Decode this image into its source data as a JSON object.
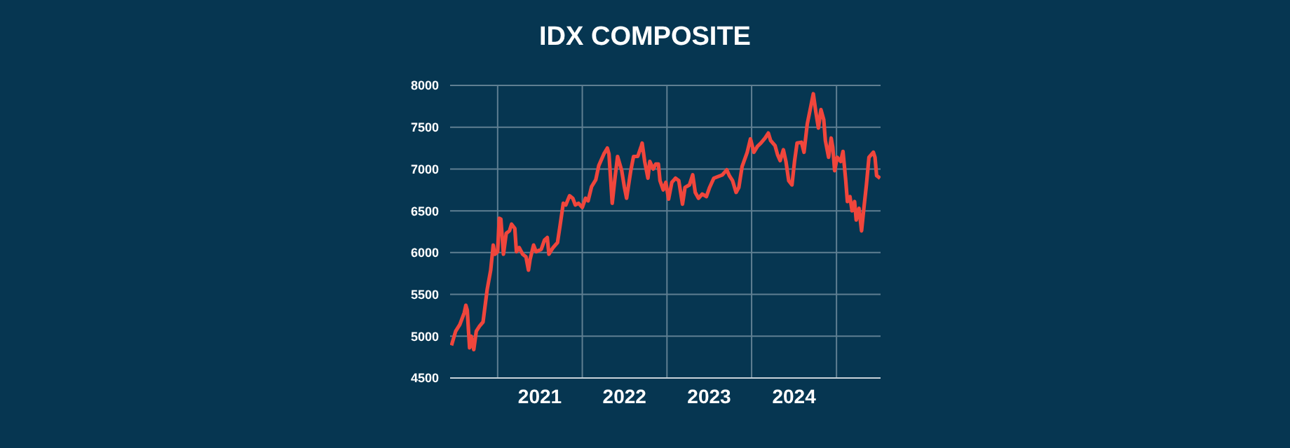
{
  "chart_data": {
    "type": "line",
    "title": "IDX COMPOSITE",
    "x": [
      "2020-06-16",
      "2020-07-04",
      "2020-07-22",
      "2020-08-10",
      "2020-08-17",
      "2020-08-23",
      "2020-09-02",
      "2020-09-09",
      "2020-09-20",
      "2020-10-01",
      "2020-10-15",
      "2020-10-30",
      "2020-11-17",
      "2020-12-02",
      "2020-12-13",
      "2020-12-20",
      "2021-01-01",
      "2021-01-08",
      "2021-01-15",
      "2021-01-26",
      "2021-02-07",
      "2021-02-21",
      "2021-03-02",
      "2021-03-16",
      "2021-03-23",
      "2021-04-04",
      "2021-04-19",
      "2021-05-03",
      "2021-05-14",
      "2021-05-21",
      "2021-06-05",
      "2021-06-16",
      "2021-07-08",
      "2021-07-22",
      "2021-08-03",
      "2021-08-10",
      "2021-08-28",
      "2021-09-16",
      "2021-09-27",
      "2021-10-11",
      "2021-10-22",
      "2021-11-07",
      "2021-11-21",
      "2021-12-02",
      "2021-12-16",
      "2022-01-01",
      "2022-01-15",
      "2022-01-26",
      "2022-02-10",
      "2022-02-28",
      "2022-03-13",
      "2022-04-04",
      "2022-04-19",
      "2022-04-26",
      "2022-05-10",
      "2022-05-21",
      "2022-06-02",
      "2022-06-20",
      "2022-07-01",
      "2022-07-11",
      "2022-07-29",
      "2022-08-10",
      "2022-08-28",
      "2022-09-13",
      "2022-09-16",
      "2022-09-27",
      "2022-10-11",
      "2022-10-19",
      "2022-11-03",
      "2022-11-14",
      "2022-11-25",
      "2022-12-02",
      "2022-12-16",
      "2022-12-27",
      "2023-01-08",
      "2023-01-22",
      "2023-02-07",
      "2023-02-21",
      "2023-03-09",
      "2023-03-20",
      "2023-04-08",
      "2023-04-22",
      "2023-05-03",
      "2023-05-17",
      "2023-06-02",
      "2023-06-20",
      "2023-07-04",
      "2023-07-22",
      "2023-08-10",
      "2023-08-28",
      "2023-09-16",
      "2023-09-27",
      "2023-10-11",
      "2023-10-26",
      "2023-11-07",
      "2023-11-21",
      "2023-12-13",
      "2023-12-27",
      "2024-01-11",
      "2024-01-26",
      "2024-02-10",
      "2024-02-28",
      "2024-03-13",
      "2024-03-23",
      "2024-04-11",
      "2024-04-22",
      "2024-05-03",
      "2024-05-17",
      "2024-05-28",
      "2024-06-09",
      "2024-06-23",
      "2024-07-04",
      "2024-07-15",
      "2024-08-03",
      "2024-08-14",
      "2024-08-28",
      "2024-09-13",
      "2024-09-23",
      "2024-10-04",
      "2024-10-15",
      "2024-10-26",
      "2024-11-07",
      "2024-11-14",
      "2024-11-28",
      "2024-12-09",
      "2024-12-16",
      "2024-12-24",
      "2025-01-04",
      "2025-01-19",
      "2025-01-29",
      "2025-02-10",
      "2025-02-17",
      "2025-02-28",
      "2025-03-09",
      "2025-03-20",
      "2025-03-27",
      "2025-04-08",
      "2025-04-19",
      "2025-04-29",
      "2025-05-10",
      "2025-05-21",
      "2025-06-09",
      "2025-06-16",
      "2025-06-23",
      "2025-07-08"
    ],
    "series": [
      {
        "color": "#f0463c",
        "values": [
          4890,
          5060,
          5140,
          5280,
          5370,
          5310,
          4860,
          5000,
          4840,
          5060,
          5120,
          5170,
          5560,
          5790,
          6090,
          5980,
          6010,
          6410,
          6400,
          5980,
          6230,
          6260,
          6340,
          6290,
          6010,
          6060,
          5980,
          5950,
          5790,
          5920,
          6090,
          6010,
          6040,
          6150,
          6180,
          5980,
          6060,
          6120,
          6320,
          6590,
          6570,
          6680,
          6650,
          6570,
          6590,
          6540,
          6650,
          6620,
          6790,
          6870,
          7040,
          7180,
          7250,
          7180,
          6590,
          6870,
          7150,
          6980,
          6790,
          6650,
          6980,
          7150,
          7150,
          7280,
          7310,
          7090,
          6890,
          7090,
          7000,
          7060,
          7060,
          6860,
          6750,
          6840,
          6640,
          6840,
          6890,
          6860,
          6580,
          6780,
          6810,
          6930,
          6720,
          6650,
          6700,
          6670,
          6780,
          6890,
          6910,
          6930,
          6990,
          6920,
          6860,
          6720,
          6780,
          7030,
          7200,
          7360,
          7200,
          7270,
          7310,
          7370,
          7430,
          7340,
          7280,
          7170,
          7100,
          7230,
          7090,
          6860,
          6810,
          7090,
          7310,
          7320,
          7200,
          7540,
          7760,
          7900,
          7680,
          7490,
          7710,
          7590,
          7340,
          7140,
          7370,
          7260,
          6980,
          7140,
          7090,
          7210,
          6860,
          6610,
          6670,
          6500,
          6610,
          6390,
          6530,
          6260,
          6530,
          6810,
          7140,
          7200,
          7140,
          6920,
          6890
        ]
      }
    ],
    "xlim": [
      "2020-06-10",
      "2025-07-10"
    ],
    "xticks": [
      {
        "value": "2021-01-01",
        "label": null
      },
      {
        "value": "2021-07-02",
        "label": "2021"
      },
      {
        "value": "2022-01-01",
        "label": null
      },
      {
        "value": "2022-07-02",
        "label": "2022"
      },
      {
        "value": "2023-01-01",
        "label": null
      },
      {
        "value": "2023-07-02",
        "label": "2023"
      },
      {
        "value": "2024-01-01",
        "label": null
      },
      {
        "value": "2024-07-02",
        "label": "2024"
      },
      {
        "value": "2025-01-01",
        "label": null
      }
    ],
    "ylim": [
      4500,
      8000
    ],
    "yticks": [
      4500,
      5000,
      5500,
      6000,
      6500,
      7000,
      7500,
      8000
    ],
    "grid": true,
    "marker": "none",
    "line_style": "solid"
  }
}
